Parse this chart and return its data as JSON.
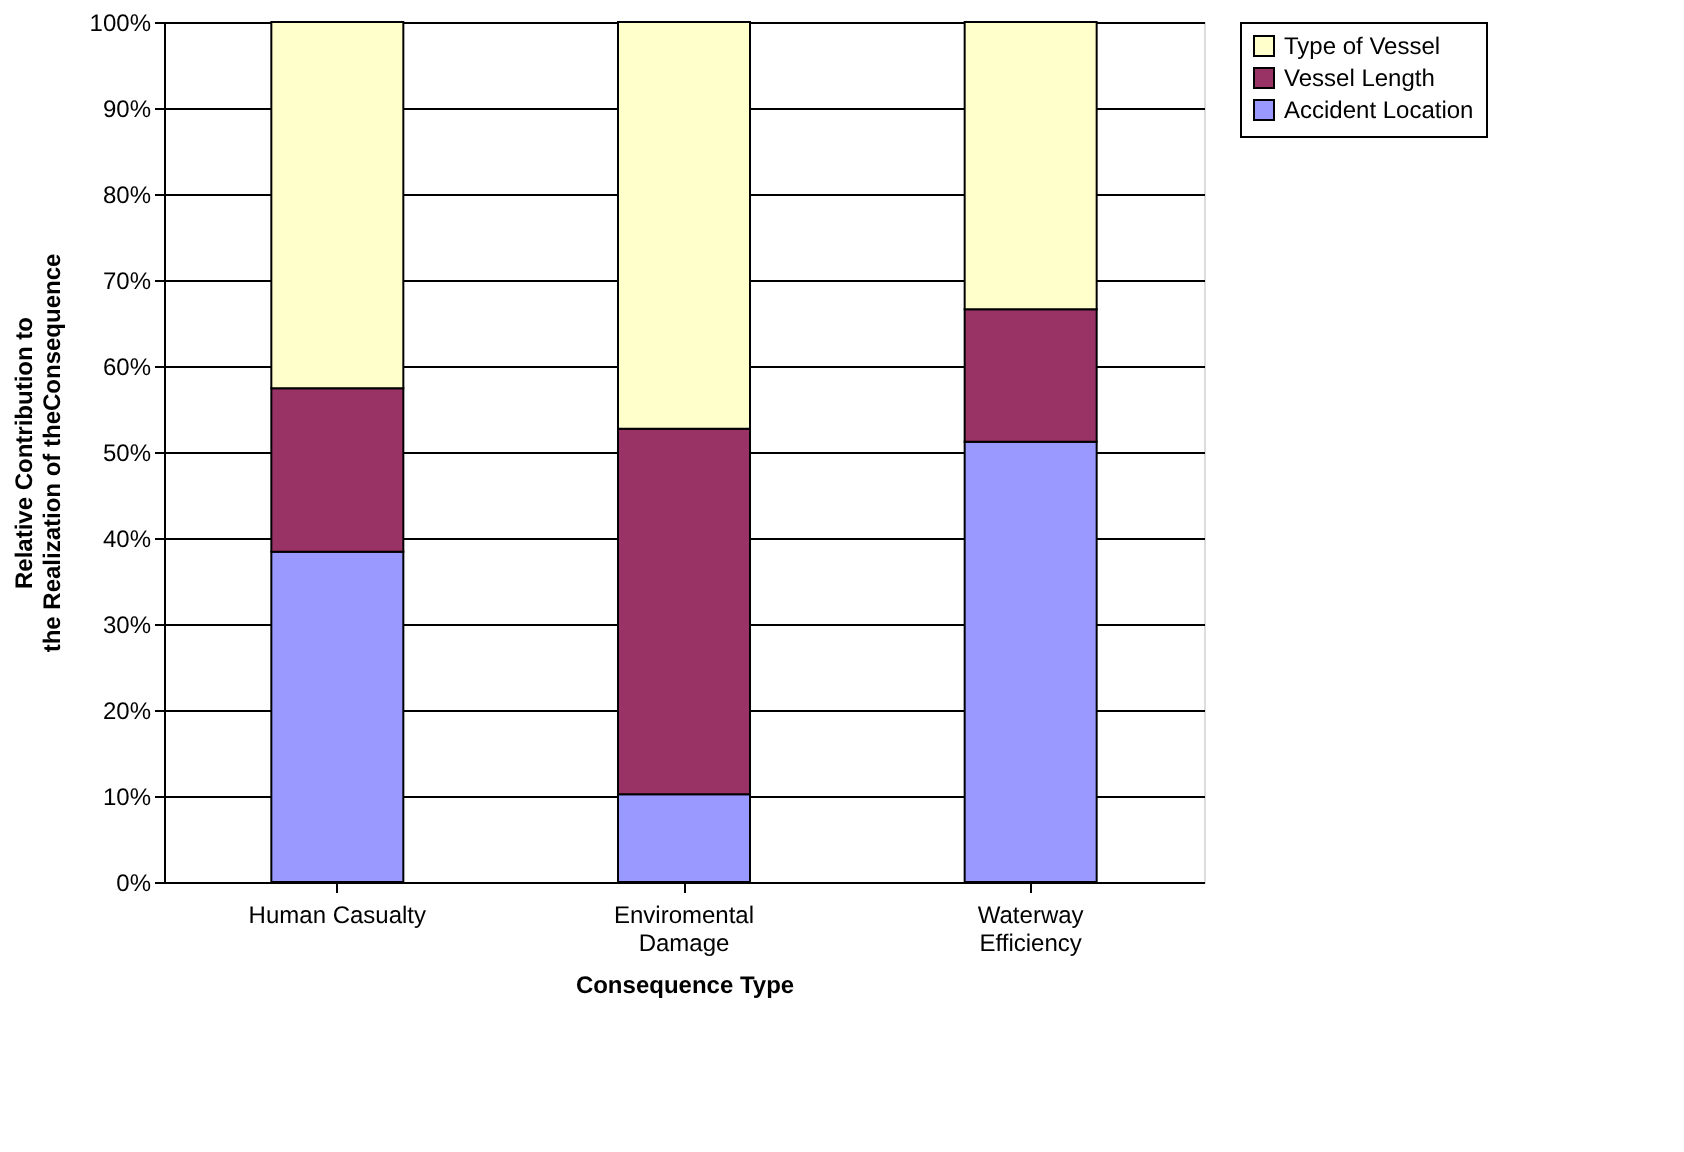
{
  "chart_data": {
    "type": "bar",
    "stacked": true,
    "xlabel": "Consequence Type",
    "ylabel": "Relative Contribution to\nthe Realization of theConsequence",
    "categories": [
      "Human Casualty",
      "Enviromental Damage",
      "Waterway Efficiency"
    ],
    "series": [
      {
        "name": "Accident Location",
        "color": "#9999ff",
        "values": [
          38.4,
          10.2,
          51.2
        ]
      },
      {
        "name": "Vessel Length",
        "color": "#993366",
        "values": [
          19.0,
          42.5,
          15.4
        ]
      },
      {
        "name": "Type of Vessel",
        "color": "#ffffcc",
        "values": [
          42.6,
          47.3,
          33.4
        ]
      }
    ],
    "ylim": [
      0,
      100
    ],
    "yticks": [
      {
        "value": 0,
        "label": "0%"
      },
      {
        "value": 10,
        "label": "10%"
      },
      {
        "value": 20,
        "label": "20%"
      },
      {
        "value": 30,
        "label": "30%"
      },
      {
        "value": 40,
        "label": "40%"
      },
      {
        "value": 50,
        "label": "50%"
      },
      {
        "value": 60,
        "label": "60%"
      },
      {
        "value": 70,
        "label": "70%"
      },
      {
        "value": 80,
        "label": "80%"
      },
      {
        "value": 90,
        "label": "90%"
      },
      {
        "value": 100,
        "label": "100%"
      }
    ],
    "grid": "y",
    "legend": "right"
  }
}
